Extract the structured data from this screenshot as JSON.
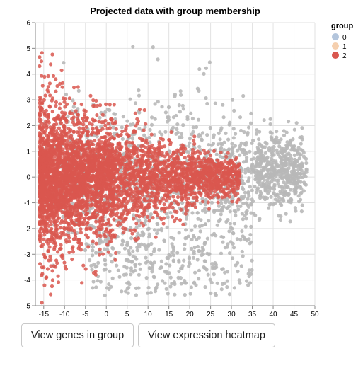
{
  "chart_data": {
    "type": "scatter",
    "title": "Projected data with group membership",
    "xlabel": "",
    "ylabel": "",
    "xlim": [
      -17,
      50
    ],
    "ylim": [
      -5,
      6
    ],
    "x_ticks": [
      -15,
      -10,
      -5,
      0,
      5,
      10,
      15,
      20,
      25,
      30,
      35,
      40,
      45,
      50
    ],
    "y_ticks": [
      -5,
      -4,
      -3,
      -2,
      -1,
      0,
      1,
      2,
      3,
      4,
      5,
      6
    ],
    "grid": true,
    "legend": {
      "title": "group",
      "placement": "top-right",
      "entries": [
        "0",
        "1",
        "2"
      ]
    },
    "series": [
      {
        "name": "0",
        "color": "#b8b8b8",
        "legend_color": "#b3c5dc",
        "description_points": "spread from x≈-15 to 48; dense tail at x 30–48 with y -1 to 2; scattered below y=-2 down to -4.7",
        "values": []
      },
      {
        "name": "1",
        "color": "#f5cfae",
        "legend_color": "#f5cfae",
        "values": []
      },
      {
        "name": "2",
        "color": "#d9574f",
        "legend_color": "#d9574f",
        "values": []
      }
    ]
  },
  "buttons": {
    "genes_label": "View genes in group",
    "heatmap_label": "View expression heatmap"
  }
}
